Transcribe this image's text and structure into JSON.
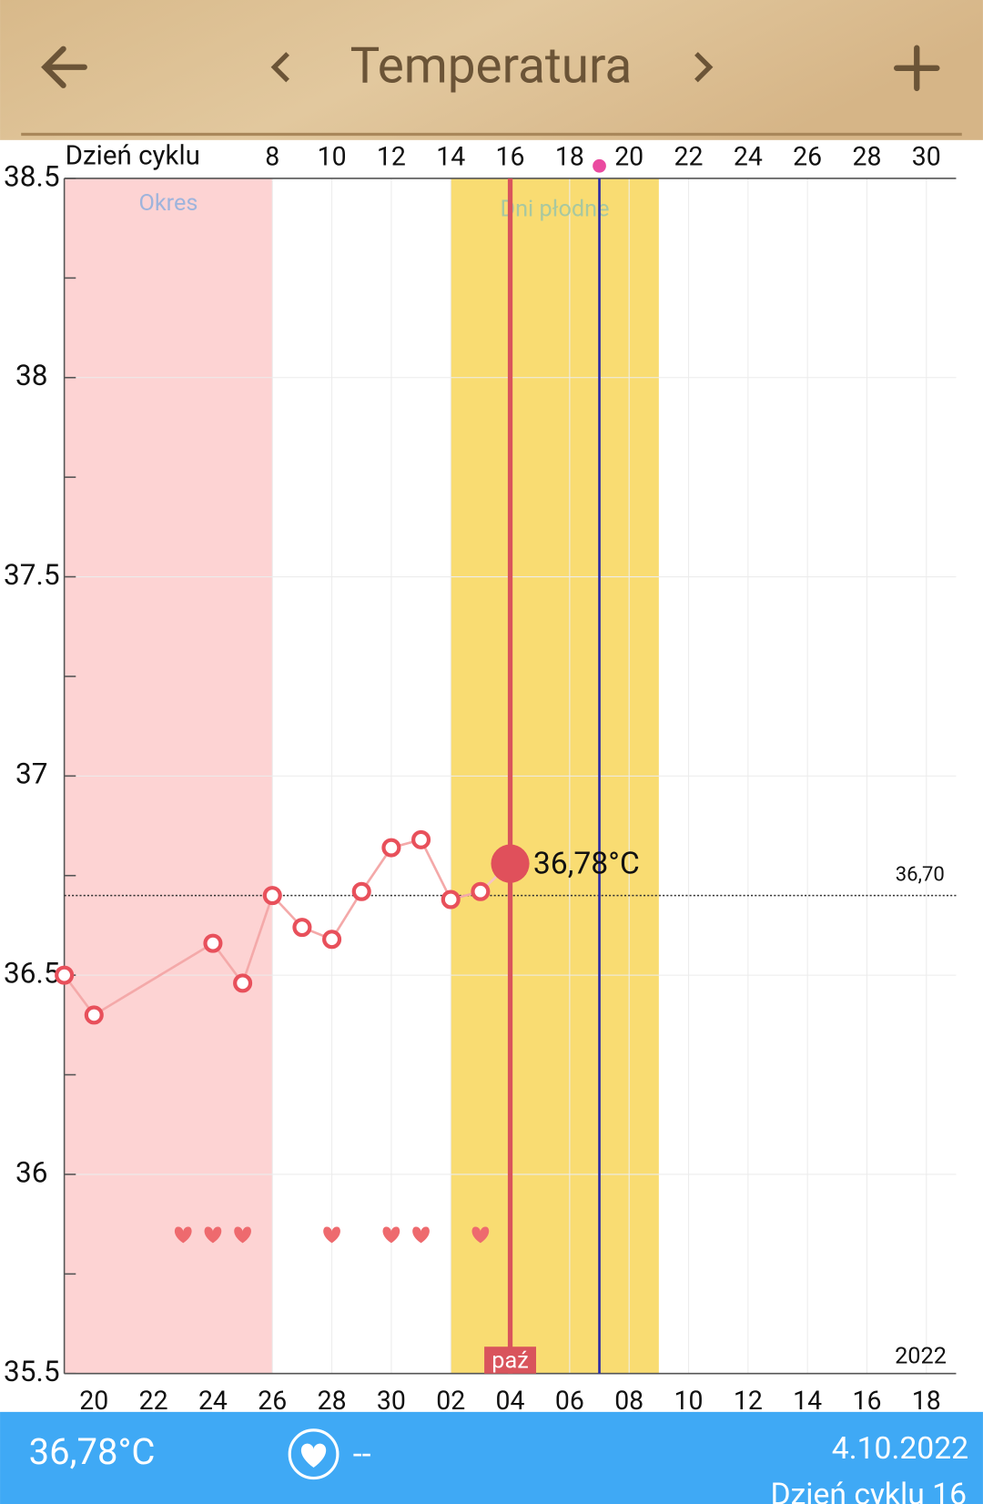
{
  "header": {
    "title": "Temperatura"
  },
  "chart_data": {
    "type": "line",
    "x_label": "Dzień cyklu",
    "xlim": [
      1,
      31
    ],
    "ylim": [
      35.5,
      38.5
    ],
    "xticks": [
      8,
      10,
      12,
      14,
      16,
      18,
      20,
      22,
      24,
      26,
      28,
      30
    ],
    "x2ticks": [
      {
        "value": 2,
        "label": "20"
      },
      {
        "value": 4,
        "label": "22"
      },
      {
        "value": 6,
        "label": "24"
      },
      {
        "value": 8,
        "label": "26"
      },
      {
        "value": 10,
        "label": "28"
      },
      {
        "value": 12,
        "label": "30"
      },
      {
        "value": 14,
        "label": "02"
      },
      {
        "value": 16,
        "label": "04"
      },
      {
        "value": 18,
        "label": "06"
      },
      {
        "value": 20,
        "label": "08"
      },
      {
        "value": 22,
        "label": "10"
      },
      {
        "value": 24,
        "label": "12"
      },
      {
        "value": 26,
        "label": "14"
      },
      {
        "value": 28,
        "label": "16"
      },
      {
        "value": 30,
        "label": "18"
      }
    ],
    "yticks": [
      35.5,
      36,
      36.5,
      37,
      37.5,
      38,
      38.5
    ],
    "yminorticks": [
      35.75,
      36.25,
      36.75,
      37.25,
      37.75,
      38.25
    ],
    "grid": true,
    "series": [
      {
        "name": "Temperatura",
        "color": "#e8505b",
        "x": [
          1,
          2,
          6,
          7,
          8,
          9,
          10,
          11,
          12,
          13,
          14,
          15
        ],
        "values": [
          36.5,
          36.4,
          36.58,
          36.48,
          36.7,
          36.62,
          36.59,
          36.71,
          36.82,
          36.84,
          36.69,
          36.71
        ]
      }
    ],
    "highlight": {
      "x": 16,
      "value": 36.78,
      "label": "36,78°C",
      "color": "#e0505b"
    },
    "coverline": {
      "value": 36.7,
      "label": "36,70"
    },
    "bands": [
      {
        "label": "Okres",
        "range": [
          1,
          8
        ],
        "color": "#fdd3d3"
      },
      {
        "label": "Dni płodne",
        "range": [
          14,
          21
        ],
        "color": "#f9dc72"
      }
    ],
    "today_line": {
      "value": 16,
      "color": "#d9545c"
    },
    "ovulation_line": {
      "value": 19,
      "color": "#2b2ba8"
    },
    "month_marker": {
      "value": 16,
      "label": "paź"
    },
    "year_label": "2022",
    "intercourse_days": [
      5,
      6,
      7,
      10,
      12,
      13,
      15
    ]
  },
  "footer": {
    "temperature": "36,78°C",
    "intercourse": "--",
    "date": "4.10.2022",
    "cycle_day": "Dzień cyklu 16"
  }
}
